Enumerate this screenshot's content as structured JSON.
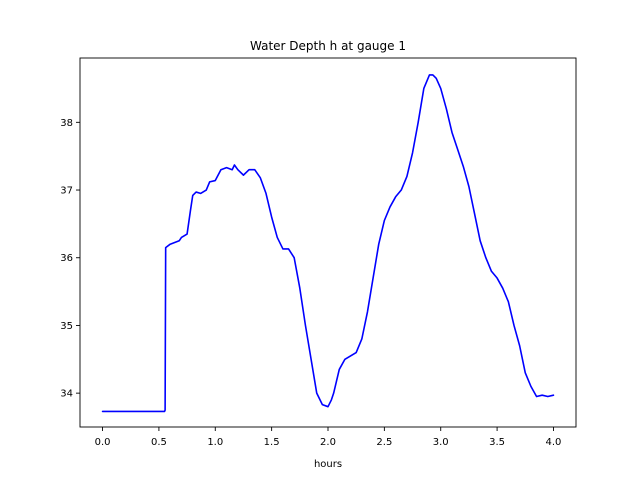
{
  "chart_data": {
    "type": "line",
    "title": "Water Depth h at gauge 1",
    "xlabel": "hours",
    "ylabel": "",
    "xlim": [
      -0.2,
      4.2
    ],
    "ylim": [
      33.5,
      38.95
    ],
    "xticks": [
      0.0,
      0.5,
      1.0,
      1.5,
      2.0,
      2.5,
      3.0,
      3.5,
      4.0
    ],
    "xtick_labels": [
      "0.0",
      "0.5",
      "1.0",
      "1.5",
      "2.0",
      "2.5",
      "3.0",
      "3.5",
      "4.0"
    ],
    "yticks": [
      34,
      35,
      36,
      37,
      38
    ],
    "ytick_labels": [
      "34",
      "35",
      "36",
      "37",
      "38"
    ],
    "grid": false,
    "series": [
      {
        "color": "#0000ff",
        "x": [
          0.0,
          0.55,
          0.555,
          0.56,
          0.6,
          0.68,
          0.7,
          0.75,
          0.78,
          0.8,
          0.83,
          0.87,
          0.92,
          0.95,
          1.0,
          1.05,
          1.1,
          1.15,
          1.17,
          1.2,
          1.25,
          1.3,
          1.35,
          1.4,
          1.45,
          1.5,
          1.55,
          1.6,
          1.65,
          1.7,
          1.75,
          1.8,
          1.85,
          1.9,
          1.95,
          2.0,
          2.03,
          2.05,
          2.1,
          2.15,
          2.2,
          2.25,
          2.3,
          2.35,
          2.4,
          2.45,
          2.5,
          2.55,
          2.6,
          2.65,
          2.7,
          2.75,
          2.8,
          2.85,
          2.9,
          2.93,
          2.96,
          3.0,
          3.05,
          3.1,
          3.15,
          3.2,
          3.25,
          3.3,
          3.35,
          3.4,
          3.45,
          3.5,
          3.55,
          3.6,
          3.65,
          3.7,
          3.75,
          3.8,
          3.85,
          3.9,
          3.95,
          4.0
        ],
        "y": [
          33.73,
          33.73,
          33.75,
          36.15,
          36.2,
          36.25,
          36.3,
          36.35,
          36.7,
          36.92,
          36.97,
          36.95,
          37.0,
          37.12,
          37.14,
          37.3,
          37.33,
          37.3,
          37.37,
          37.3,
          37.22,
          37.3,
          37.3,
          37.18,
          36.95,
          36.6,
          36.3,
          36.13,
          36.13,
          36.0,
          35.55,
          35.0,
          34.5,
          34.0,
          33.83,
          33.8,
          33.9,
          34.0,
          34.35,
          34.5,
          34.55,
          34.6,
          34.8,
          35.2,
          35.7,
          36.2,
          36.55,
          36.75,
          36.9,
          37.0,
          37.2,
          37.55,
          38.0,
          38.5,
          38.7,
          38.7,
          38.65,
          38.5,
          38.2,
          37.85,
          37.6,
          37.35,
          37.05,
          36.65,
          36.25,
          36.0,
          35.8,
          35.7,
          35.55,
          35.35,
          35.0,
          34.7,
          34.3,
          34.1,
          33.95,
          33.97,
          33.95,
          33.97
        ]
      }
    ]
  }
}
